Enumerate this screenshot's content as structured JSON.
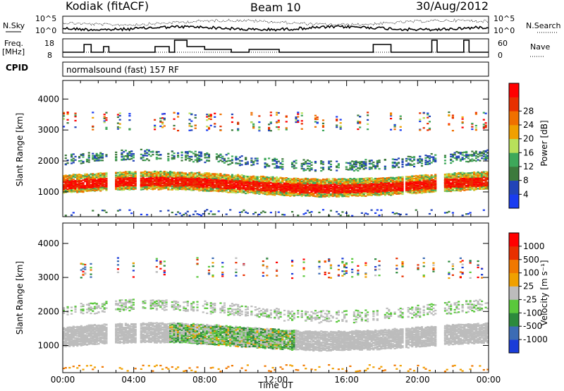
{
  "header": {
    "station": "Kodiak (fitACF)",
    "beam": "Beam 10",
    "date": "30/Aug/2012"
  },
  "strip_labels": {
    "nsky": "N.Sky",
    "nsearch": "N.Search",
    "freq": "Freq.",
    "freq_unit": "[MHz]",
    "nave": "Nave",
    "cpid": "CPID",
    "cpid_text": "normalsound (fast) 157 RF"
  },
  "strip_ticks": {
    "noise_left": [
      "10^5",
      "10^0"
    ],
    "noise_right": [
      "10^5",
      "10^0"
    ],
    "freq_left": [
      "18",
      "8"
    ],
    "nave_right": [
      "60",
      "0"
    ]
  },
  "chart_data": [
    {
      "type": "heatmap",
      "name": "power",
      "xlabel": "",
      "ylabel": "Slant Range [km]",
      "x_range_hours": [
        0,
        24
      ],
      "ylim": [
        200,
        4600
      ],
      "yticks": [
        "1000",
        "2000",
        "3000",
        "4000"
      ],
      "colorbar": {
        "label": "Power [dB]",
        "ticks": [
          "4",
          "8",
          "12",
          "16",
          "20",
          "24",
          "28"
        ],
        "colors": [
          "#1a3cf0",
          "#2244b8",
          "#3c7a3c",
          "#3ea85a",
          "#b8e05a",
          "#f0a000",
          "#f07000",
          "#e83000",
          "#ff0000"
        ]
      },
      "bands": [
        {
          "center": 1250,
          "spread": 150,
          "color": "power-high"
        },
        {
          "center": 1600,
          "spread": 300,
          "color": "power-mid"
        },
        {
          "center": 2100,
          "spread": 300,
          "color": "power-low"
        },
        {
          "center": 3300,
          "spread": 200,
          "color": "power-sparse"
        }
      ]
    },
    {
      "type": "heatmap",
      "name": "velocity",
      "xlabel": "Time UT",
      "ylabel": "Slant Range [km]",
      "x_range_hours": [
        0,
        24
      ],
      "ylim": [
        200,
        4600
      ],
      "yticks": [
        "1000",
        "2000",
        "3000",
        "4000"
      ],
      "xticks": [
        "00:00",
        "04:00",
        "08:00",
        "12:00",
        "16:00",
        "20:00",
        "00:00"
      ],
      "colorbar": {
        "label": "Velocity [m s⁻¹]",
        "ticks": [
          "1000",
          "500",
          "100",
          "25",
          "-25",
          "-100",
          "-500",
          "-1000"
        ],
        "colors": [
          "#1a3cd8",
          "#3c6cb4",
          "#2c8a3c",
          "#5ac83c",
          "#bcbcbc",
          "#f0a000",
          "#f07800",
          "#e83000",
          "#ff0000"
        ]
      },
      "bands": [
        {
          "center": 1300,
          "spread": 250,
          "color": "ground-scatter"
        },
        {
          "center": 1700,
          "spread": 300,
          "color": "vel-pos"
        },
        {
          "center": 2200,
          "spread": 250,
          "color": "ground-scatter"
        }
      ]
    }
  ]
}
